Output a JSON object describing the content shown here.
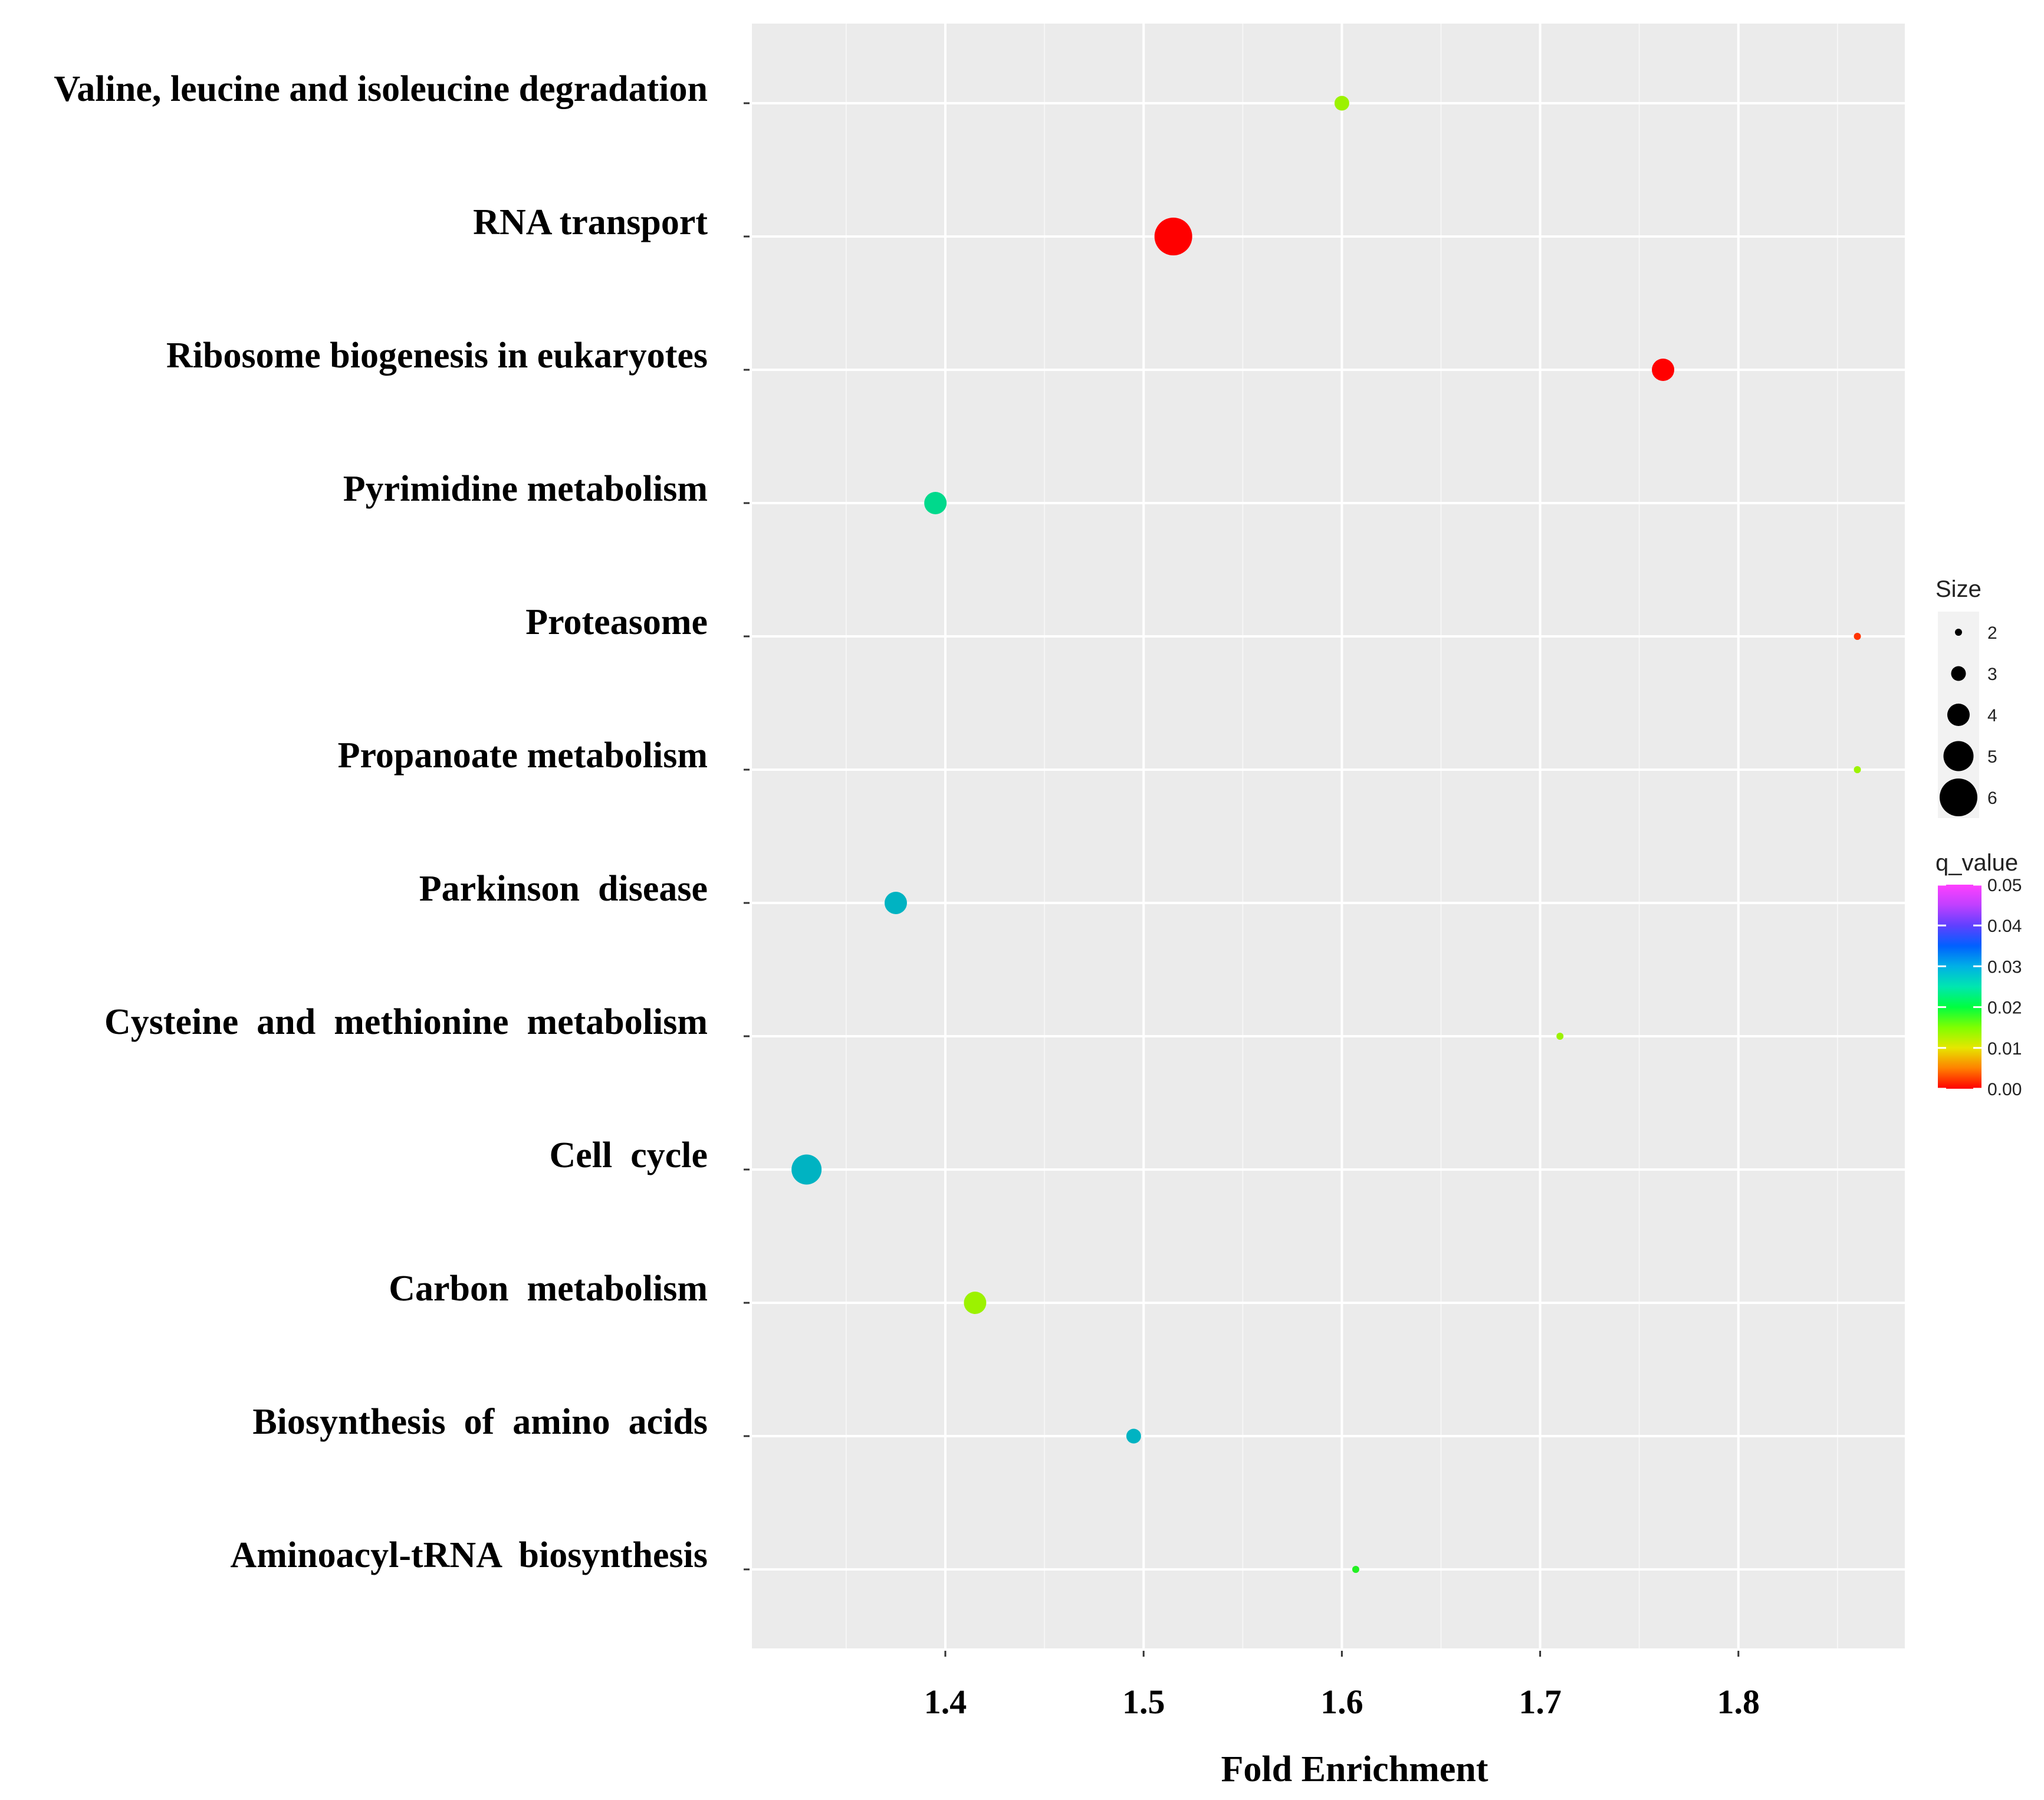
{
  "chart_data": {
    "type": "scatter",
    "xlabel": "Fold Enrichment",
    "ylabel": "",
    "xlim": [
      1.285,
      1.87
    ],
    "xticks": [
      1.4,
      1.5,
      1.6,
      1.7,
      1.8
    ],
    "xtick_labels": [
      "1.4",
      "1.5",
      "1.6",
      "1.7",
      "1.8"
    ],
    "grid": true,
    "categories": [
      "Valine, leucine and isoleucine degradation",
      "RNA transport",
      "Ribosome biogenesis in eukaryotes",
      "Pyrimidine metabolism",
      "Proteasome",
      "Propanoate metabolism",
      "Parkinson  disease",
      "Cysteine  and  methionine  metabolism",
      "Cell  cycle",
      "Carbon  metabolism",
      "Biosynthesis  of  amino  acids",
      "Aminoacyl-tRNA  biosynthesis"
    ],
    "points": [
      {
        "category": "Valine, leucine and isoleucine degradation",
        "fold_enrichment": 1.6,
        "size": 3,
        "q_value": 0.011,
        "color": "#9cf200"
      },
      {
        "category": "RNA transport",
        "fold_enrichment": 1.515,
        "size": 6,
        "q_value": 0.0005,
        "color": "#ff0000"
      },
      {
        "category": "Ribosome biogenesis in eukaryotes",
        "fold_enrichment": 1.762,
        "size": 4,
        "q_value": 0.0005,
        "color": "#ff0000"
      },
      {
        "category": "Pyrimidine metabolism",
        "fold_enrichment": 1.395,
        "size": 4,
        "q_value": 0.024,
        "color": "#00d98c"
      },
      {
        "category": "Proteasome",
        "fold_enrichment": 1.86,
        "size": 2,
        "q_value": 0.002,
        "color": "#ff3300"
      },
      {
        "category": "Propanoate metabolism",
        "fold_enrichment": 1.86,
        "size": 2,
        "q_value": 0.011,
        "color": "#9cf200"
      },
      {
        "category": "Parkinson  disease",
        "fold_enrichment": 1.375,
        "size": 4,
        "q_value": 0.029,
        "color": "#00b3c2"
      },
      {
        "category": "Cysteine  and  methionine  metabolism",
        "fold_enrichment": 1.71,
        "size": 2,
        "q_value": 0.011,
        "color": "#9cf200"
      },
      {
        "category": "Cell  cycle",
        "fold_enrichment": 1.33,
        "size": 5,
        "q_value": 0.029,
        "color": "#00b3c2"
      },
      {
        "category": "Carbon  metabolism",
        "fold_enrichment": 1.415,
        "size": 4,
        "q_value": 0.011,
        "color": "#9cf200"
      },
      {
        "category": "Biosynthesis  of  amino  acids",
        "fold_enrichment": 1.495,
        "size": 3,
        "q_value": 0.029,
        "color": "#00b3c2"
      },
      {
        "category": "Aminoacyl-tRNA  biosynthesis",
        "fold_enrichment": 1.607,
        "size": 2,
        "q_value": 0.019,
        "color": "#22f022"
      }
    ],
    "size_legend": {
      "title": "Size",
      "values": [
        2,
        3,
        4,
        5,
        6
      ],
      "labels": [
        "2",
        "3",
        "4",
        "5",
        "6"
      ]
    },
    "color_legend": {
      "title": "q_value",
      "range": [
        0.0,
        0.05
      ],
      "ticks": [
        0.05,
        0.04,
        0.03,
        0.02,
        0.01,
        0.0
      ],
      "tick_labels": [
        "0.05",
        "0.04",
        "0.03",
        "0.02",
        "0.01",
        "0.00"
      ],
      "colors_low_to_high": [
        "#ff0000",
        "#ff8000",
        "#e6e600",
        "#80ff00",
        "#00ff40",
        "#00e6b0",
        "#00b0e6",
        "#0060ff",
        "#6040ff",
        "#c040ff",
        "#ff40ff"
      ]
    }
  }
}
